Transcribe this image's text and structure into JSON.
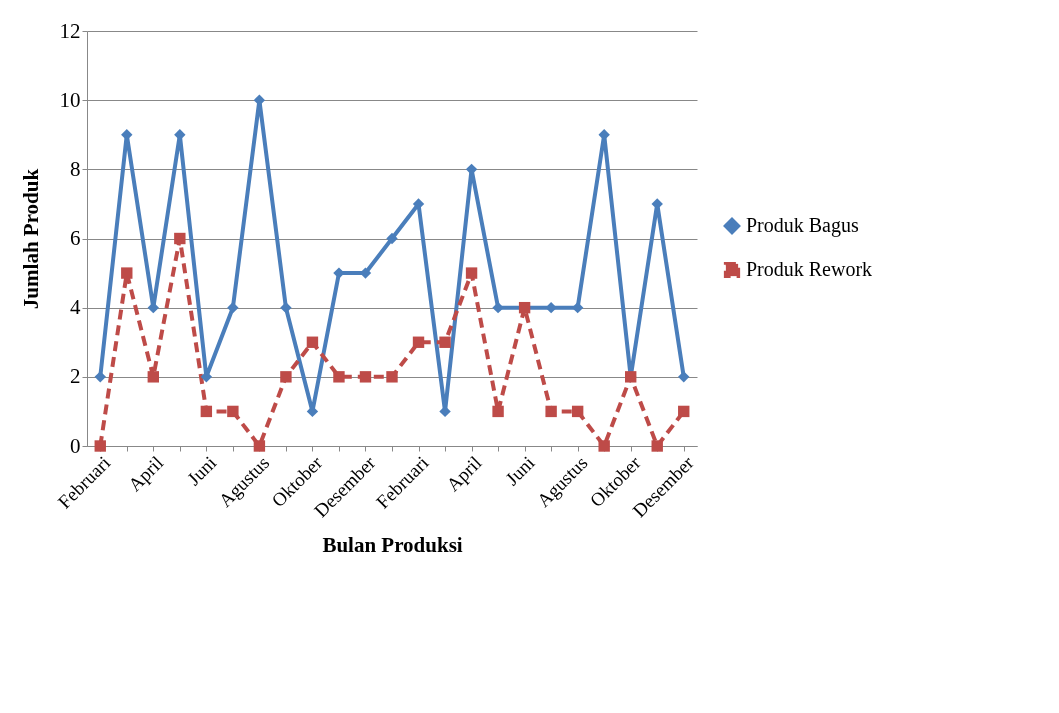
{
  "chart_data": {
    "type": "line",
    "xlabel": "Bulan Produksi",
    "ylabel": "Jumlah Produk",
    "categories": [
      "Februari",
      null,
      "April",
      null,
      "Juni",
      null,
      "Agustus",
      null,
      "Oktober",
      null,
      "Desember",
      null,
      "Februari",
      null,
      "April",
      null,
      "Juni",
      null,
      "Agustus",
      null,
      "Oktober",
      null,
      "Desember"
    ],
    "series": [
      {
        "name": "Produk Bagus",
        "color": "#4a7ebb",
        "marker": "diamond",
        "line_style": "solid",
        "values": [
          2,
          9,
          4,
          9,
          2,
          4,
          10,
          4,
          1,
          5,
          5,
          6,
          7,
          1,
          8,
          4,
          4,
          4,
          4,
          9,
          2,
          7,
          2
        ]
      },
      {
        "name": "Produk Rework",
        "color": "#be4b48",
        "marker": "square",
        "line_style": "dashed",
        "values": [
          0,
          5,
          2,
          6,
          1,
          1,
          0,
          2,
          3,
          2,
          2,
          2,
          3,
          3,
          5,
          1,
          4,
          1,
          1,
          0,
          2,
          0,
          1
        ]
      }
    ],
    "ylim": [
      0,
      12
    ],
    "yticks": [
      0,
      2,
      4,
      6,
      8,
      10,
      12
    ],
    "grid": "y",
    "legend": "right"
  }
}
